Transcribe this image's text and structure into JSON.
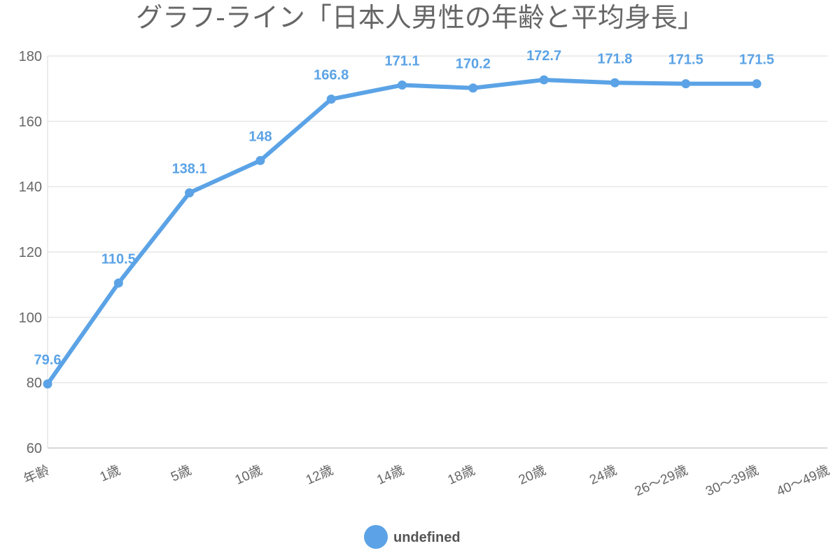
{
  "chart_data": {
    "type": "line",
    "title": "グラフ-ライン「日本人男性の年齢と平均身長」",
    "categories": [
      "年齢",
      "1歳",
      "5歳",
      "10歳",
      "12歳",
      "14歳",
      "18歳",
      "20歳",
      "24歳",
      "26〜29歳",
      "30〜39歳",
      "40〜49歳"
    ],
    "series": [
      {
        "name": "undefined",
        "color": "#5ba3e6",
        "values": [
          79.6,
          110.5,
          138.1,
          148,
          166.8,
          171.1,
          170.2,
          172.7,
          171.8,
          171.5,
          171.5,
          null
        ]
      }
    ],
    "ylim": [
      60,
      180
    ],
    "yticks": [
      60,
      80,
      100,
      120,
      140,
      160,
      180
    ],
    "grid": true,
    "legend": "bottom-center",
    "xlabel": "",
    "ylabel": ""
  }
}
